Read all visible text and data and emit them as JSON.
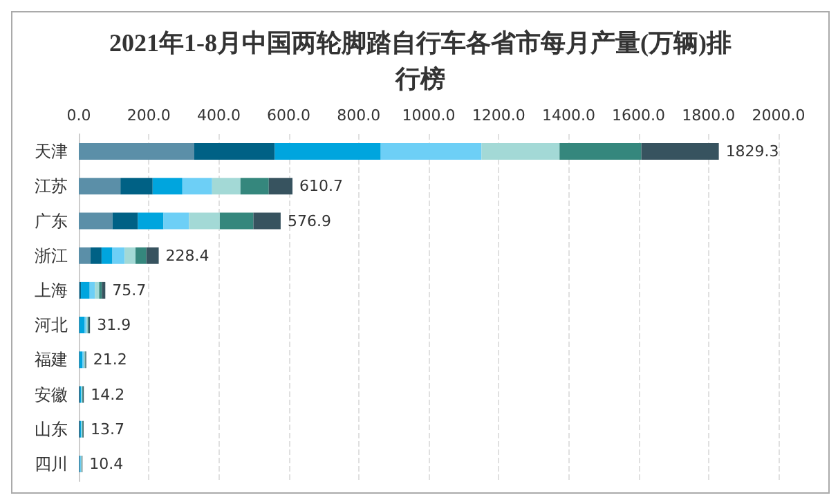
{
  "chart_data": {
    "type": "bar",
    "orientation": "horizontal",
    "stacked": true,
    "title": "2021年1-8月中国两轮脚踏自行车各省市每月产量(万辆)排行榜",
    "categories": [
      "天津",
      "江苏",
      "广东",
      "浙江",
      "上海",
      "河北",
      "福建",
      "安徽",
      "山东",
      "四川"
    ],
    "series": [
      {
        "color": "#5b8fa8",
        "values": [
          330,
          119,
          96,
          33,
          3,
          1,
          1,
          2,
          2,
          2
        ]
      },
      {
        "color": "#006185",
        "values": [
          230,
          92,
          73,
          32,
          3,
          1,
          1,
          2,
          2,
          1
        ]
      },
      {
        "color": "#00a5de",
        "values": [
          303,
          85,
          73,
          31,
          25,
          15,
          8,
          2,
          2,
          1
        ]
      },
      {
        "color": "#6dcff6",
        "values": [
          288,
          85,
          73,
          35,
          15,
          5,
          4,
          2,
          2,
          2
        ]
      },
      {
        "color": "#a3d9d6",
        "values": [
          223,
          81,
          88,
          31,
          12,
          3,
          3,
          2,
          2,
          2
        ]
      },
      {
        "color": "#35877d",
        "values": [
          234,
          81,
          96,
          31,
          8,
          3,
          2,
          2,
          2,
          1
        ]
      },
      {
        "color": "#37535f",
        "values": [
          221.3,
          67.7,
          77.9,
          35.4,
          9.7,
          3.9,
          2.2,
          2.2,
          1.7,
          1.4
        ]
      }
    ],
    "totals": [
      "1829.3",
      "610.7",
      "576.9",
      "228.4",
      "75.7",
      "31.9",
      "21.2",
      "14.2",
      "13.7",
      "10.4"
    ],
    "xlim": [
      0,
      2000
    ],
    "xticks": [
      {
        "value": 0,
        "label": "0.0"
      },
      {
        "value": 200,
        "label": "200.0"
      },
      {
        "value": 400,
        "label": "400.0"
      },
      {
        "value": 600,
        "label": "600.0"
      },
      {
        "value": 800,
        "label": "800.0"
      },
      {
        "value": 1000,
        "label": "1000.0"
      },
      {
        "value": 1200,
        "label": "1200.0"
      },
      {
        "value": 1400,
        "label": "1400.0"
      },
      {
        "value": 1600,
        "label": "1600.0"
      },
      {
        "value": 1800,
        "label": "1800.0"
      },
      {
        "value": 2000,
        "label": "2000.0"
      }
    ],
    "grid": "x"
  }
}
